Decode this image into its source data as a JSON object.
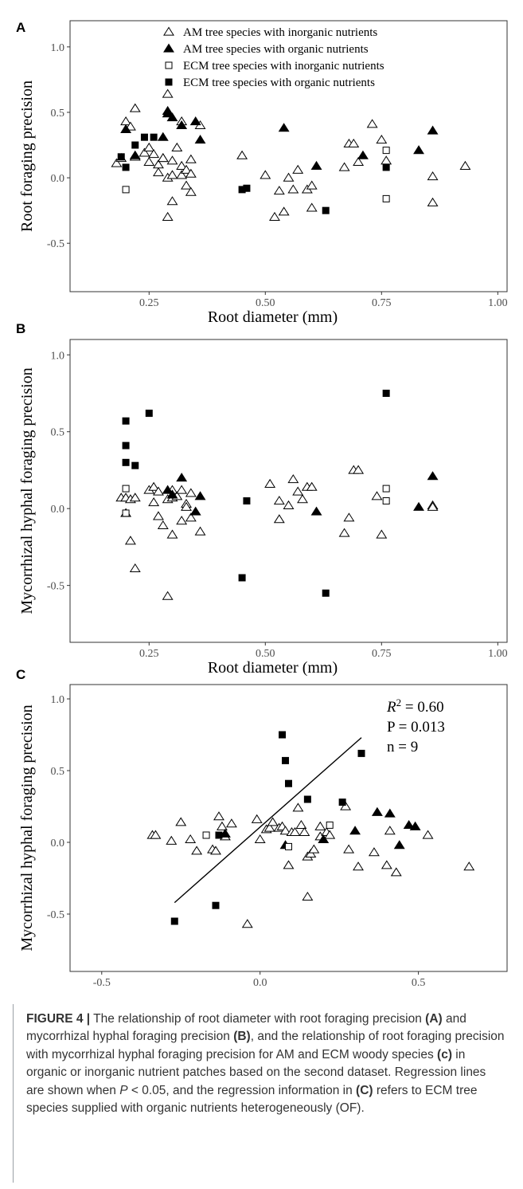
{
  "legend": [
    {
      "key": "am_inorganic",
      "label": "AM tree species with inorganic nutrients"
    },
    {
      "key": "am_organic",
      "label": "AM tree species with organic nutrients"
    },
    {
      "key": "ecm_inorganic",
      "label": "ECM tree species with inorganic nutrients"
    },
    {
      "key": "ecm_organic",
      "label": "ECM tree species with organic nutrients"
    }
  ],
  "regression_text": {
    "r2_label": "R",
    "r2_sup": "2",
    "r2_value": " = 0.60",
    "p": "P = 0.013",
    "n": "n = 9"
  },
  "caption": {
    "figure_label": "FIGURE 4 |",
    "text_1": " The relationship of root diameter with root foraging precision ",
    "ref_a": "(A)",
    "text_2": " and mycorrhizal hyphal foraging precision ",
    "ref_b": "(B)",
    "text_3": ", and the relationship of root foraging precision with mycorrhizal hyphal foraging precision for AM and ECM woody species ",
    "ref_c": "(c)",
    "text_4": " in organic or inorganic nutrient patches based on the second dataset. Regression lines are shown when ",
    "p_italic": "P",
    "text_5": " < 0.05, and the regression information in ",
    "ref_c2": "(C)",
    "text_6": " refers to ECM tree species supplied with organic nutrients heterogeneously (OF)."
  },
  "chart_data": [
    {
      "panel": "A",
      "type": "scatter",
      "xlabel": "Root diameter (mm)",
      "ylabel": "Root foraging precision",
      "xlim": [
        0.08,
        1.02
      ],
      "ylim": [
        -0.87,
        1.2
      ],
      "xticks": [
        0.25,
        0.5,
        0.75,
        1.0
      ],
      "xtick_labels": [
        "0.25",
        "0.50",
        "0.75",
        "1.00"
      ],
      "yticks": [
        -0.5,
        0.0,
        0.5,
        1.0
      ],
      "ytick_labels": [
        "-0.5",
        "0.0",
        "0.5",
        "1.0"
      ],
      "legend_position": "top",
      "series": [
        {
          "name": "AM tree species with inorganic nutrients",
          "marker": "open-triangle",
          "points": [
            [
              0.18,
              0.11
            ],
            [
              0.19,
              0.15
            ],
            [
              0.2,
              0.43
            ],
            [
              0.21,
              0.39
            ],
            [
              0.22,
              0.16
            ],
            [
              0.22,
              0.53
            ],
            [
              0.24,
              0.19
            ],
            [
              0.25,
              0.12
            ],
            [
              0.25,
              0.23
            ],
            [
              0.26,
              0.18
            ],
            [
              0.27,
              0.04
            ],
            [
              0.27,
              0.1
            ],
            [
              0.28,
              0.15
            ],
            [
              0.28,
              0.15
            ],
            [
              0.29,
              0.64
            ],
            [
              0.29,
              -0.3
            ],
            [
              0.29,
              0.0
            ],
            [
              0.3,
              0.13
            ],
            [
              0.3,
              0.02
            ],
            [
              0.3,
              -0.18
            ],
            [
              0.31,
              0.23
            ],
            [
              0.32,
              0.43
            ],
            [
              0.32,
              0.09
            ],
            [
              0.32,
              0.02
            ],
            [
              0.33,
              -0.06
            ],
            [
              0.33,
              0.06
            ],
            [
              0.34,
              0.14
            ],
            [
              0.34,
              0.03
            ],
            [
              0.34,
              -0.11
            ],
            [
              0.36,
              0.4
            ],
            [
              0.45,
              0.17
            ],
            [
              0.5,
              0.02
            ],
            [
              0.52,
              -0.3
            ],
            [
              0.53,
              -0.1
            ],
            [
              0.54,
              -0.26
            ],
            [
              0.55,
              0.0
            ],
            [
              0.56,
              -0.09
            ],
            [
              0.57,
              0.06
            ],
            [
              0.59,
              -0.09
            ],
            [
              0.6,
              -0.06
            ],
            [
              0.6,
              -0.23
            ],
            [
              0.67,
              0.08
            ],
            [
              0.68,
              0.26
            ],
            [
              0.69,
              0.26
            ],
            [
              0.7,
              0.12
            ],
            [
              0.73,
              0.41
            ],
            [
              0.75,
              0.29
            ],
            [
              0.76,
              0.13
            ],
            [
              0.86,
              0.01
            ],
            [
              0.86,
              -0.19
            ],
            [
              0.93,
              0.09
            ]
          ]
        },
        {
          "name": "AM tree species with organic nutrients",
          "marker": "filled-triangle",
          "points": [
            [
              0.2,
              0.37
            ],
            [
              0.22,
              0.17
            ],
            [
              0.28,
              0.31
            ],
            [
              0.29,
              0.49
            ],
            [
              0.29,
              0.51
            ],
            [
              0.3,
              0.46
            ],
            [
              0.32,
              0.4
            ],
            [
              0.35,
              0.43
            ],
            [
              0.36,
              0.29
            ],
            [
              0.54,
              0.38
            ],
            [
              0.61,
              0.09
            ],
            [
              0.71,
              0.17
            ],
            [
              0.83,
              0.21
            ],
            [
              0.86,
              0.36
            ]
          ]
        },
        {
          "name": "ECM tree species with inorganic nutrients",
          "marker": "open-square",
          "points": [
            [
              0.2,
              -0.09
            ],
            [
              0.76,
              0.21
            ],
            [
              0.76,
              -0.16
            ]
          ]
        },
        {
          "name": "ECM tree species with organic nutrients",
          "marker": "filled-square",
          "points": [
            [
              0.19,
              0.16
            ],
            [
              0.2,
              0.08
            ],
            [
              0.22,
              0.25
            ],
            [
              0.24,
              0.31
            ],
            [
              0.26,
              0.31
            ],
            [
              0.45,
              -0.09
            ],
            [
              0.46,
              -0.08
            ],
            [
              0.63,
              -0.25
            ],
            [
              0.76,
              0.08
            ]
          ]
        }
      ]
    },
    {
      "panel": "B",
      "type": "scatter",
      "xlabel": "Root diameter (mm)",
      "ylabel": "Mycorrhizal hyphal foraging precision",
      "xlim": [
        0.08,
        1.02
      ],
      "ylim": [
        -0.87,
        1.1
      ],
      "xticks": [
        0.25,
        0.5,
        0.75,
        1.0
      ],
      "xtick_labels": [
        "0.25",
        "0.50",
        "0.75",
        "1.00"
      ],
      "yticks": [
        -0.5,
        0.0,
        0.5,
        1.0
      ],
      "ytick_labels": [
        "-0.5",
        "0.0",
        "0.5",
        "1.0"
      ],
      "series": [
        {
          "name": "AM tree species with inorganic nutrients",
          "marker": "open-triangle",
          "points": [
            [
              0.19,
              0.07
            ],
            [
              0.2,
              -0.03
            ],
            [
              0.2,
              0.07
            ],
            [
              0.21,
              -0.21
            ],
            [
              0.21,
              0.06
            ],
            [
              0.22,
              0.07
            ],
            [
              0.22,
              -0.39
            ],
            [
              0.25,
              0.12
            ],
            [
              0.26,
              0.04
            ],
            [
              0.26,
              0.14
            ],
            [
              0.27,
              0.11
            ],
            [
              0.27,
              -0.05
            ],
            [
              0.28,
              -0.11
            ],
            [
              0.29,
              0.06
            ],
            [
              0.29,
              -0.57
            ],
            [
              0.3,
              0.12
            ],
            [
              0.3,
              -0.17
            ],
            [
              0.3,
              0.07
            ],
            [
              0.31,
              0.08
            ],
            [
              0.32,
              0.12
            ],
            [
              0.32,
              -0.08
            ],
            [
              0.33,
              0.03
            ],
            [
              0.33,
              0.01
            ],
            [
              0.34,
              -0.06
            ],
            [
              0.34,
              0.1
            ],
            [
              0.36,
              -0.15
            ],
            [
              0.51,
              0.16
            ],
            [
              0.53,
              0.05
            ],
            [
              0.53,
              -0.07
            ],
            [
              0.55,
              0.02
            ],
            [
              0.56,
              0.19
            ],
            [
              0.57,
              0.11
            ],
            [
              0.58,
              0.06
            ],
            [
              0.59,
              0.14
            ],
            [
              0.6,
              0.14
            ],
            [
              0.67,
              -0.16
            ],
            [
              0.68,
              -0.06
            ],
            [
              0.69,
              0.25
            ],
            [
              0.7,
              0.25
            ],
            [
              0.74,
              0.08
            ],
            [
              0.75,
              -0.17
            ],
            [
              0.86,
              0.02
            ],
            [
              0.86,
              0.01
            ]
          ]
        },
        {
          "name": "AM tree species with organic nutrients",
          "marker": "filled-triangle",
          "points": [
            [
              0.29,
              0.12
            ],
            [
              0.3,
              0.09
            ],
            [
              0.32,
              0.2
            ],
            [
              0.35,
              -0.02
            ],
            [
              0.36,
              0.08
            ],
            [
              0.61,
              -0.02
            ],
            [
              0.83,
              0.01
            ],
            [
              0.86,
              0.21
            ]
          ]
        },
        {
          "name": "ECM tree species with inorganic nutrients",
          "marker": "open-square",
          "points": [
            [
              0.2,
              0.13
            ],
            [
              0.2,
              -0.03
            ],
            [
              0.76,
              0.13
            ],
            [
              0.76,
              0.05
            ]
          ]
        },
        {
          "name": "ECM tree species with organic nutrients",
          "marker": "filled-square",
          "points": [
            [
              0.2,
              0.57
            ],
            [
              0.2,
              0.41
            ],
            [
              0.2,
              0.3
            ],
            [
              0.22,
              0.28
            ],
            [
              0.25,
              0.62
            ],
            [
              0.45,
              -0.45
            ],
            [
              0.46,
              0.05
            ],
            [
              0.63,
              -0.55
            ],
            [
              0.76,
              0.75
            ]
          ]
        }
      ]
    },
    {
      "panel": "C",
      "type": "scatter",
      "xlabel": "Root foraging precision",
      "ylabel": "Mycorrhizal hyphal foraging precision",
      "xlim": [
        -0.6,
        0.78
      ],
      "ylim": [
        -0.9,
        1.1
      ],
      "xticks": [
        -0.5,
        0.0,
        0.5
      ],
      "xtick_labels": [
        "-0.5",
        "0.0",
        "0.5"
      ],
      "yticks": [
        -0.5,
        0.0,
        0.5,
        1.0
      ],
      "ytick_labels": [
        "-0.5",
        "0.0",
        "0.5",
        "1.0"
      ],
      "regression_line": {
        "x": [
          -0.27,
          0.32
        ],
        "y": [
          -0.42,
          0.73
        ]
      },
      "series": [
        {
          "name": "AM tree species with inorganic nutrients",
          "marker": "open-triangle",
          "points": [
            [
              -0.34,
              0.05
            ],
            [
              -0.33,
              0.05
            ],
            [
              -0.28,
              0.01
            ],
            [
              -0.25,
              0.14
            ],
            [
              -0.22,
              0.02
            ],
            [
              -0.2,
              -0.06
            ],
            [
              -0.15,
              -0.05
            ],
            [
              -0.14,
              -0.06
            ],
            [
              -0.13,
              0.18
            ],
            [
              -0.12,
              0.11
            ],
            [
              -0.11,
              0.04
            ],
            [
              -0.09,
              0.13
            ],
            [
              -0.04,
              -0.57
            ],
            [
              -0.01,
              0.16
            ],
            [
              0.0,
              0.02
            ],
            [
              0.02,
              0.09
            ],
            [
              0.03,
              0.1
            ],
            [
              0.04,
              0.14
            ],
            [
              0.06,
              0.1
            ],
            [
              0.07,
              0.11
            ],
            [
              0.08,
              0.08
            ],
            [
              0.09,
              -0.16
            ],
            [
              0.1,
              0.07
            ],
            [
              0.11,
              0.07
            ],
            [
              0.12,
              0.24
            ],
            [
              0.13,
              0.12
            ],
            [
              0.14,
              0.07
            ],
            [
              0.15,
              -0.38
            ],
            [
              0.15,
              -0.1
            ],
            [
              0.16,
              -0.08
            ],
            [
              0.17,
              -0.05
            ],
            [
              0.19,
              0.04
            ],
            [
              0.19,
              0.11
            ],
            [
              0.21,
              0.07
            ],
            [
              0.22,
              0.05
            ],
            [
              0.27,
              0.25
            ],
            [
              0.28,
              -0.05
            ],
            [
              0.31,
              -0.17
            ],
            [
              0.36,
              -0.07
            ],
            [
              0.4,
              -0.16
            ],
            [
              0.41,
              0.08
            ],
            [
              0.43,
              -0.21
            ],
            [
              0.53,
              0.05
            ],
            [
              0.66,
              -0.17
            ]
          ]
        },
        {
          "name": "AM tree species with organic nutrients",
          "marker": "filled-triangle",
          "points": [
            [
              -0.11,
              0.06
            ],
            [
              0.08,
              -0.02
            ],
            [
              0.2,
              0.02
            ],
            [
              0.3,
              0.08
            ],
            [
              0.37,
              0.21
            ],
            [
              0.41,
              0.2
            ],
            [
              0.44,
              -0.02
            ],
            [
              0.47,
              0.12
            ],
            [
              0.49,
              0.11
            ]
          ]
        },
        {
          "name": "ECM tree species with inorganic nutrients",
          "marker": "open-square",
          "points": [
            [
              -0.17,
              0.05
            ],
            [
              0.09,
              -0.03
            ],
            [
              0.22,
              0.12
            ]
          ]
        },
        {
          "name": "ECM tree species with organic nutrients",
          "marker": "filled-square",
          "points": [
            [
              -0.27,
              -0.55
            ],
            [
              -0.14,
              -0.44
            ],
            [
              -0.13,
              0.05
            ],
            [
              0.07,
              0.75
            ],
            [
              0.08,
              0.57
            ],
            [
              0.09,
              0.41
            ],
            [
              0.15,
              0.3
            ],
            [
              0.26,
              0.28
            ],
            [
              0.32,
              0.62
            ]
          ]
        }
      ]
    }
  ]
}
